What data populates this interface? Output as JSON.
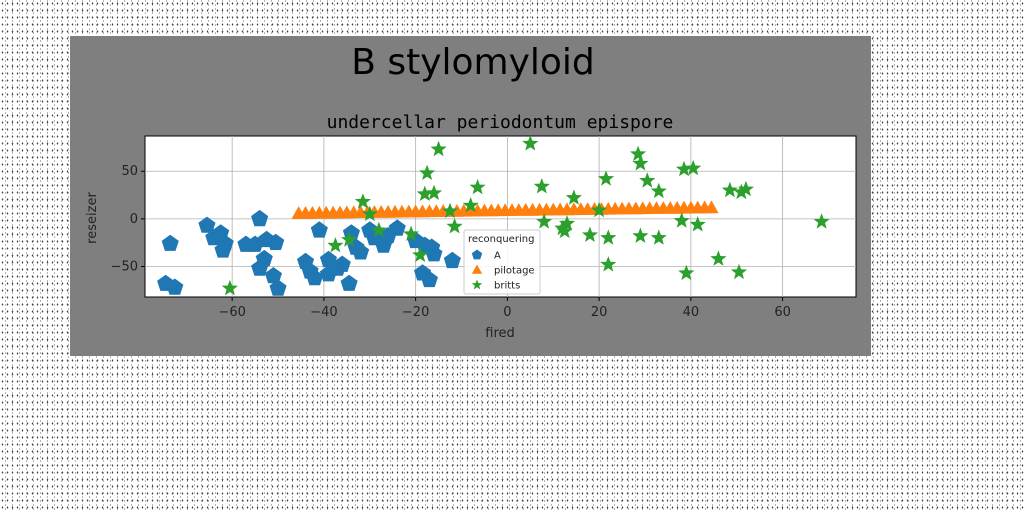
{
  "chart_data": {
    "type": "scatter",
    "suptitle": "B stylomyloid",
    "title": "undercellar periodontum epispore",
    "xlabel": "fired",
    "ylabel": "reseizer",
    "xlim": [
      -79,
      76
    ],
    "ylim": [
      -82,
      87
    ],
    "xticks": [
      -60,
      -40,
      -20,
      0,
      20,
      40,
      60
    ],
    "xtick_labels": [
      "−60",
      "−40",
      "−20",
      "0",
      "20",
      "40",
      "60"
    ],
    "yticks": [
      -50,
      0,
      50
    ],
    "ytick_labels": [
      "−50",
      "0",
      "50"
    ],
    "grid": true,
    "legend": {
      "title": "reconquering",
      "placement": "lower-center"
    },
    "series": [
      {
        "name": "A",
        "marker": "pentagon",
        "color": "#1f77b4",
        "x": [
          -73.5,
          -65.5,
          -62.5,
          -61.5,
          -64,
          -62,
          -54,
          -55,
          -52.5,
          -50.5,
          -53,
          -57,
          -54,
          -51,
          -44,
          -43,
          -41,
          -39,
          -37,
          -36,
          -39,
          -34,
          -33,
          -32,
          -30,
          -29,
          -27,
          -26,
          -24,
          -20,
          -18,
          -16,
          -18.5,
          -17,
          -12,
          -74.5,
          -72.5,
          -50,
          -42,
          -34.5,
          -16.5
        ],
        "y": [
          -26,
          -7,
          -15,
          -26,
          -20,
          -33,
          0,
          -27,
          -22,
          -25,
          -42,
          -27,
          -52,
          -60,
          -45,
          -55,
          -12,
          -43,
          -52,
          -48,
          -58,
          -15,
          -30,
          -35,
          -12,
          -20,
          -28,
          -18,
          -10,
          -23,
          -28,
          -37,
          -57,
          -64,
          -44,
          -68,
          -72,
          -73,
          -62,
          -68,
          -30
        ]
      },
      {
        "name": "pilotage",
        "marker": "triangle",
        "color": "#ff7f0e",
        "x": [
          -45.5,
          -44,
          -42.5,
          -41,
          -39.5,
          -38,
          -36.5,
          -35,
          -33.5,
          -32,
          -30.5,
          -29,
          -27.5,
          -26,
          -24.5,
          -23,
          -21.5,
          -20,
          -18.5,
          -17,
          -15.5,
          -14,
          -12.5,
          -11,
          -9.5,
          -8,
          -6.5,
          -5,
          -3.5,
          -2,
          -0.5,
          1,
          2.5,
          4,
          5.5,
          7,
          8.5,
          10,
          11.5,
          13,
          14.5,
          16,
          17.5,
          19,
          20.5,
          22,
          23.5,
          25,
          26.5,
          28,
          29.5,
          31,
          32.5,
          34,
          35.5,
          37,
          38.5,
          40,
          41.5,
          43,
          44.5
        ],
        "y": [
          5.5,
          5.6,
          5.7,
          5.8,
          5.9,
          6.0,
          6.1,
          6.2,
          6.3,
          6.4,
          6.5,
          6.6,
          6.7,
          6.8,
          6.9,
          7.0,
          7.1,
          7.2,
          7.3,
          7.4,
          7.5,
          7.6,
          7.7,
          7.8,
          7.9,
          8.0,
          8.1,
          8.2,
          8.3,
          8.4,
          8.5,
          8.6,
          8.7,
          8.8,
          8.9,
          9.0,
          9.1,
          9.2,
          9.3,
          9.4,
          9.5,
          9.6,
          9.7,
          9.8,
          9.9,
          10.0,
          10.1,
          10.2,
          10.3,
          10.4,
          10.5,
          10.6,
          10.7,
          10.8,
          10.9,
          11.0,
          11.1,
          11.2,
          11.3,
          11.4,
          11.5
        ]
      },
      {
        "name": "britts",
        "marker": "star",
        "color": "#2ca02c",
        "x": [
          -60.5,
          -37.5,
          -34.5,
          -31.5,
          -30,
          -28,
          -21,
          -19,
          -18,
          -17.5,
          -16,
          -15,
          -12.5,
          -11.5,
          -8,
          -6.5,
          5,
          7.5,
          8,
          12,
          12.5,
          13,
          14.5,
          18,
          20,
          21.5,
          22,
          22,
          28.5,
          29,
          29,
          30.5,
          33,
          33,
          38,
          38.5,
          39,
          40.5,
          41.5,
          46,
          48.5,
          50.5,
          51,
          52,
          68.5
        ],
        "y": [
          -73,
          -28,
          -22,
          18,
          5,
          -12,
          -16,
          -38,
          26,
          48,
          27,
          73,
          8,
          -8,
          14,
          33,
          79,
          34,
          -3,
          -10,
          -13,
          -5,
          22,
          -17,
          9,
          42,
          -48,
          -20,
          68,
          58,
          -18,
          40,
          -20,
          29,
          -2,
          52,
          -57,
          53,
          -6,
          -42,
          30,
          -56,
          28,
          31,
          -3
        ]
      }
    ]
  }
}
